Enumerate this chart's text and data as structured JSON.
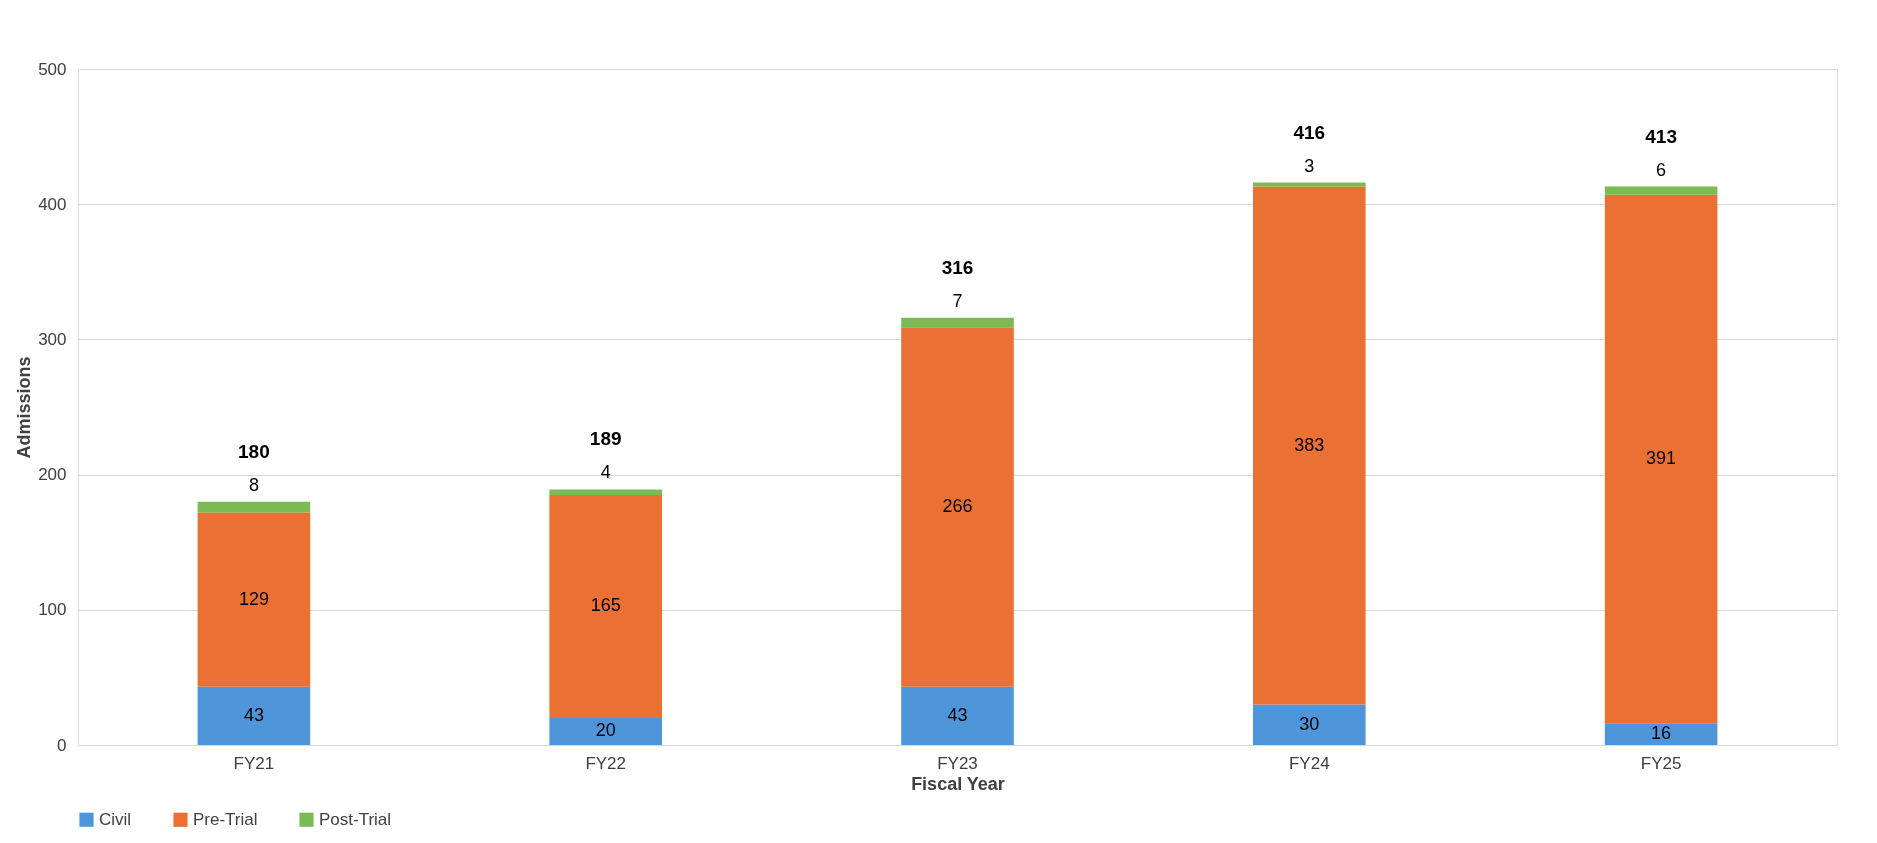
{
  "chart_data": {
    "type": "bar",
    "stacked": true,
    "xlabel": "Fiscal Year",
    "ylabel": "Admissions",
    "categories": [
      "FY21",
      "FY22",
      "FY23",
      "FY24",
      "FY25"
    ],
    "series": [
      {
        "name": "Civil",
        "color": "#4e96d9",
        "values": [
          43,
          20,
          43,
          30,
          16
        ]
      },
      {
        "name": "Pre-Trial",
        "color": "#ea7033",
        "values": [
          129,
          165,
          266,
          383,
          391
        ]
      },
      {
        "name": "Post-Trial",
        "color": "#7cba53",
        "values": [
          8,
          4,
          7,
          3,
          6
        ]
      }
    ],
    "totals": [
      "180",
      "189",
      "316",
      "416",
      "413"
    ],
    "data_labels": true,
    "ylim": [
      0,
      500
    ],
    "yticks": [
      0,
      100,
      200,
      300,
      400,
      500
    ],
    "grid": "y",
    "legend": "bottom"
  }
}
